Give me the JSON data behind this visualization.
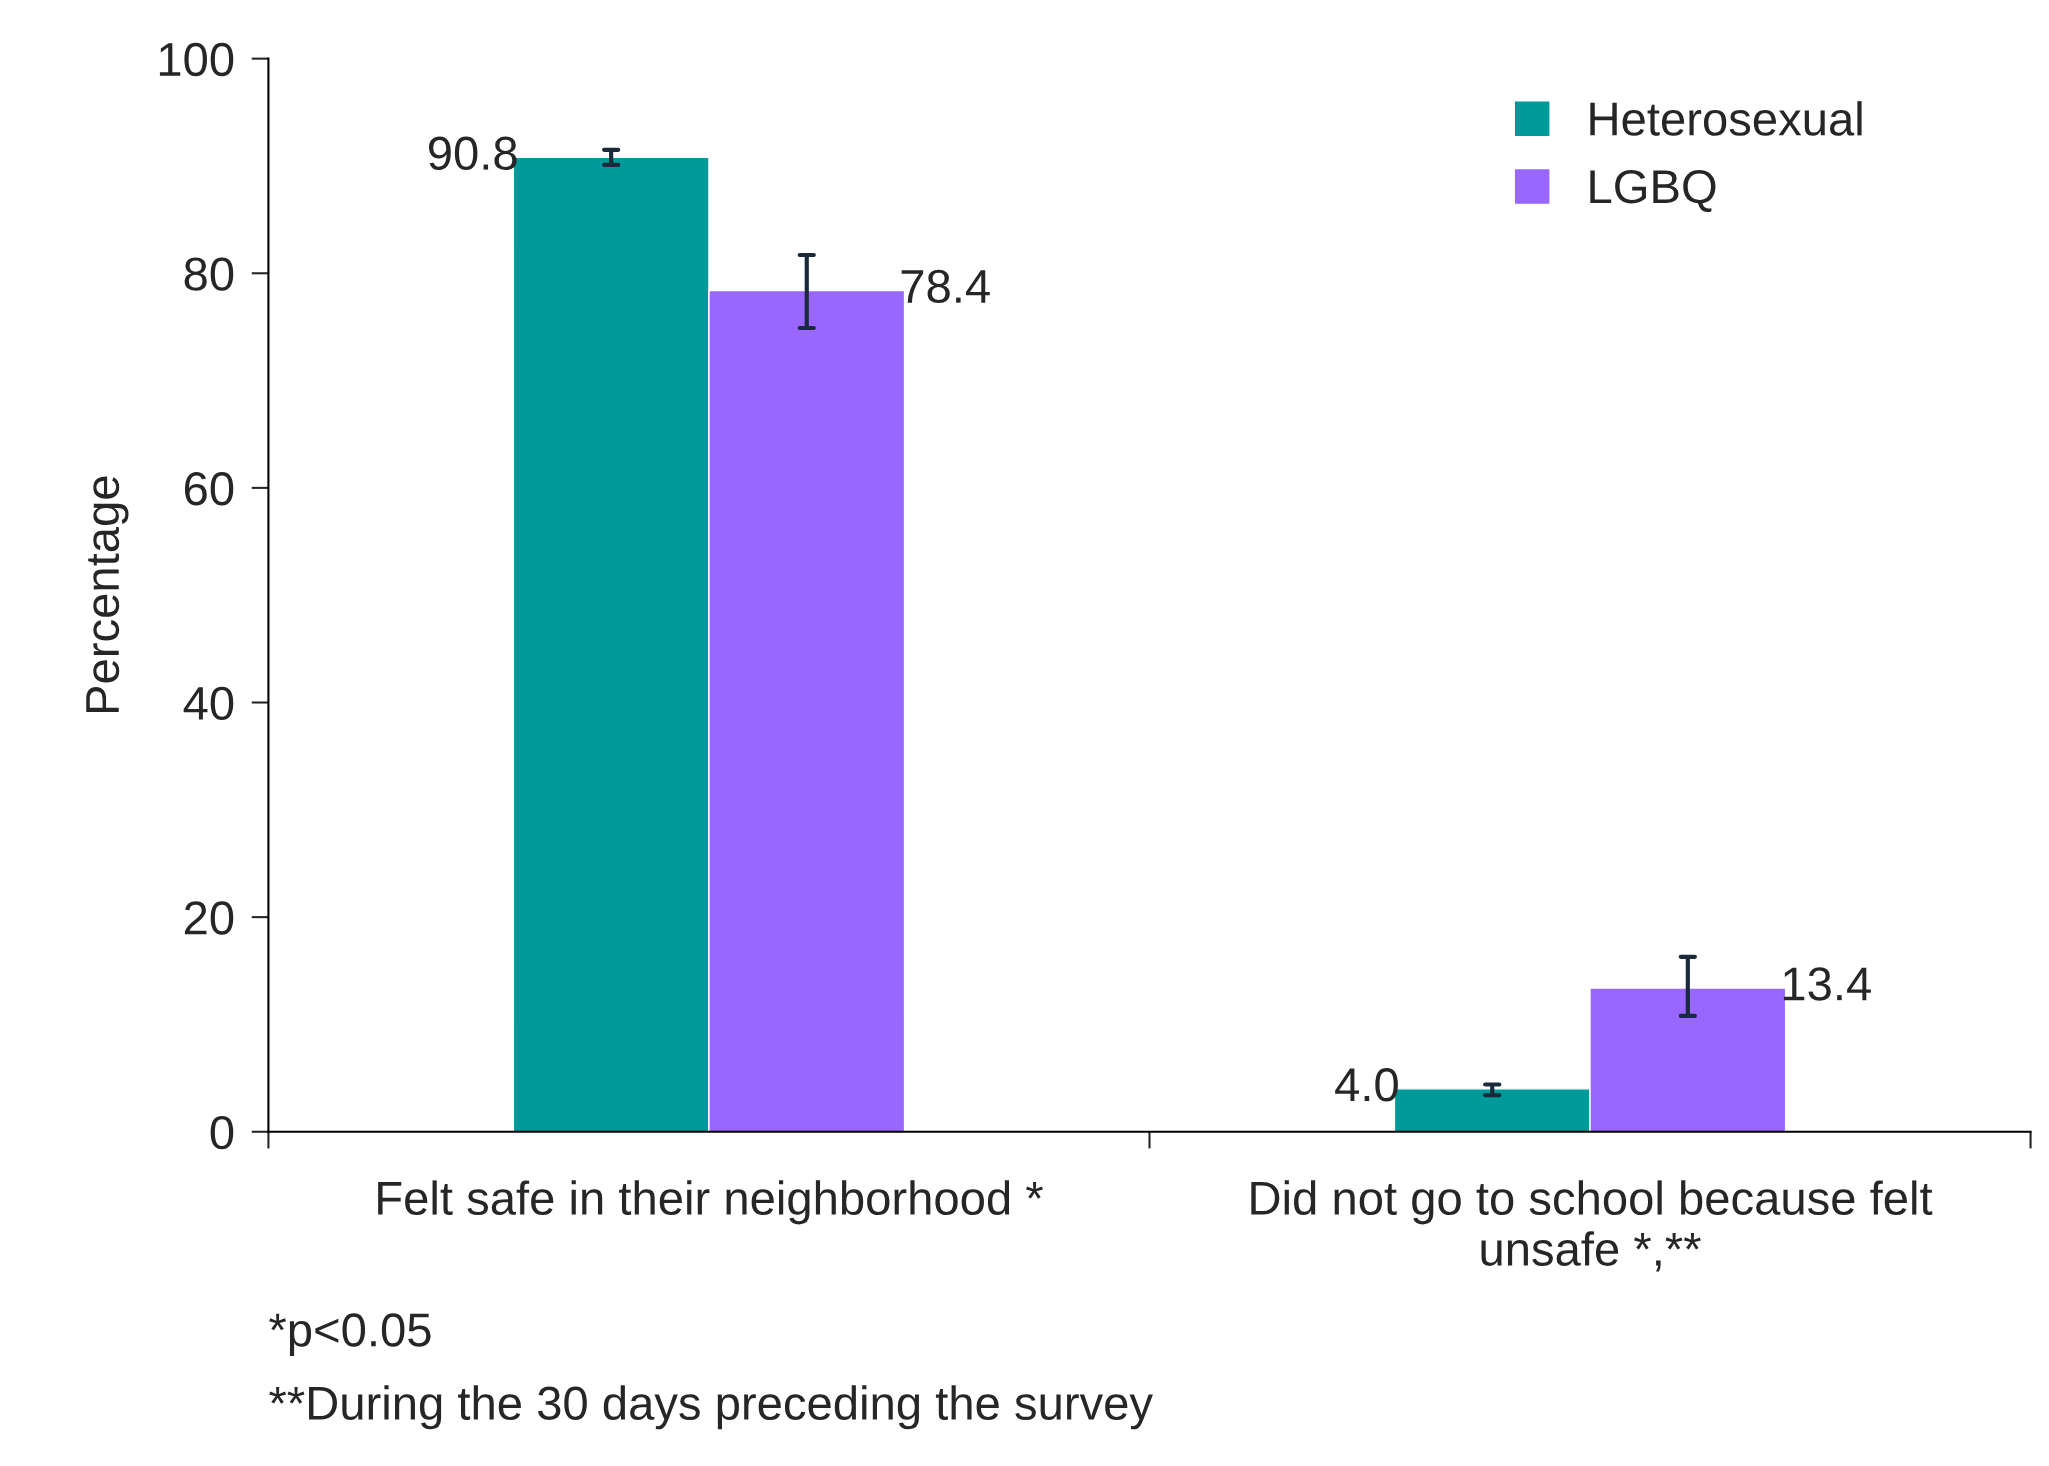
{
  "chart_data": {
    "type": "bar",
    "ylabel": "Percentage",
    "categories": [
      "Felt safe in their neighborhood *",
      "Did not go to school because felt\nunsafe *,**"
    ],
    "series": [
      {
        "name": "Heterosexual",
        "color": "#009999",
        "values": [
          90.8,
          4.0
        ],
        "value_labels": [
          "90.8",
          "4.0"
        ],
        "errors": [
          [
            90.1,
            91.5
          ],
          [
            3.4,
            4.4
          ]
        ]
      },
      {
        "name": "LGBQ",
        "color": "#9966ff",
        "values": [
          78.4,
          13.4
        ],
        "value_labels": [
          "78.4",
          "13.4"
        ],
        "errors": [
          [
            74.9,
            81.7
          ],
          [
            10.8,
            16.3
          ]
        ]
      }
    ],
    "ylim": [
      0,
      100
    ],
    "yticks": [
      0,
      20,
      40,
      60,
      80,
      100
    ],
    "legend": "top right",
    "grid": false,
    "annotations": [
      "*p<0.05",
      "**During the 30 days preceding the survey"
    ]
  }
}
